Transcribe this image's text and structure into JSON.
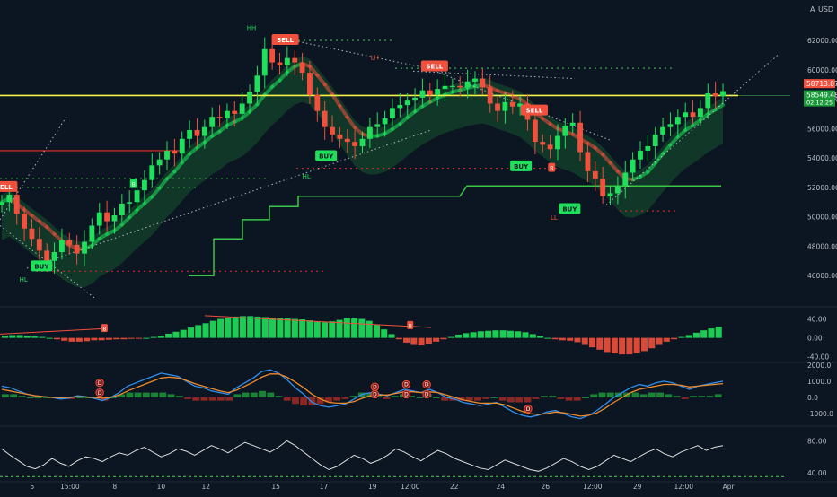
{
  "header": {
    "currency": "USD",
    "scale_mode": "A"
  },
  "colors": {
    "background": "#0c1622",
    "bull": "#1ee05a",
    "bull_dark": "#1b8f3a",
    "bear": "#f0503c",
    "bear_dark": "#9a2a22",
    "yellow": "#f5f34a",
    "axis_text": "#b7bdc6",
    "white": "#dcdcdc",
    "blue": "#2f8ff0",
    "orange": "#ef8a2a"
  },
  "chart_data": [
    {
      "type": "candlestick",
      "panel": "price",
      "y_axis_ticks": [
        "62000.00",
        "60000.00",
        "58000.00",
        "56000.00",
        "54000.00",
        "52000.00",
        "50000.00",
        "48000.00",
        "46000.00"
      ],
      "y_axis_tick_values": [
        62000,
        60000,
        58000,
        56000,
        54000,
        52000,
        50000,
        48000,
        46000
      ],
      "ylim": [
        44000,
        64500
      ],
      "x_axis_ticks": [
        "5",
        "15:00",
        "8",
        "10",
        "12",
        "15",
        "17",
        "19",
        "12:00",
        "22",
        "24",
        "26",
        "12:00",
        "29",
        "12:00",
        "Apr"
      ],
      "x_axis_tick_fractions": [
        0.041,
        0.089,
        0.146,
        0.205,
        0.262,
        0.351,
        0.412,
        0.474,
        0.522,
        0.578,
        0.637,
        0.694,
        0.754,
        0.811,
        0.87,
        0.927
      ],
      "price_levels": {
        "yellow_line": 58250,
        "last_price_label": "58713.07",
        "current_price_label": "58549.48",
        "countdown_label": "02:12:25"
      },
      "close_path": [
        51000,
        51500,
        50200,
        49200,
        48500,
        47700,
        47000,
        47600,
        48400,
        48100,
        47500,
        48300,
        49400,
        50300,
        49700,
        50100,
        50900,
        51000,
        51800,
        52500,
        53500,
        53900,
        54500,
        54300,
        55300,
        55900,
        55500,
        56100,
        56800,
        56700,
        57200,
        57000,
        57700,
        58500,
        59600,
        61400,
        60500,
        60300,
        60800,
        60500,
        59800,
        58300,
        57200,
        56100,
        55600,
        55300,
        55100,
        54800,
        55300,
        56100,
        56300,
        56700,
        57400,
        57600,
        57900,
        58100,
        58600,
        58300,
        58700,
        58900,
        58900,
        58800,
        59200,
        59400,
        58800,
        57700,
        57200,
        57800,
        57500,
        57700,
        56600,
        55100,
        54900,
        54600,
        55500,
        56200,
        56400,
        54400,
        53100,
        52600,
        51400,
        51600,
        52100,
        53000,
        53900,
        54500,
        54800,
        55600,
        56100,
        56300,
        56800,
        57100,
        56800,
        57400,
        58400,
        58200,
        58550
      ],
      "annotations": [
        {
          "text": "HH",
          "kind": "label_green",
          "x": 0.32,
          "y": 62700
        },
        {
          "text": "LH",
          "kind": "label_red",
          "x": 0.477,
          "y": 60700
        },
        {
          "text": "HL",
          "kind": "label_green",
          "x": 0.39,
          "y": 52600
        },
        {
          "text": "HL",
          "kind": "label_green",
          "x": 0.03,
          "y": 45600
        },
        {
          "text": "LL",
          "kind": "label_red",
          "x": 0.705,
          "y": 49800
        },
        {
          "text": "SELL",
          "kind": "sell",
          "x": 0.363,
          "y": 62000
        },
        {
          "text": "SELL",
          "kind": "sell",
          "x": 0.553,
          "y": 60200
        },
        {
          "text": "SELL",
          "kind": "sell",
          "x": 0.68,
          "y": 57200
        },
        {
          "text": "SELL",
          "kind": "sell",
          "x": 0.005,
          "y": 52000
        },
        {
          "text": "BUY",
          "kind": "buy",
          "x": 0.053,
          "y": 46600
        },
        {
          "text": "BUY",
          "kind": "buy",
          "x": 0.415,
          "y": 54100
        },
        {
          "text": "BUY",
          "kind": "buy",
          "x": 0.663,
          "y": 53400
        },
        {
          "text": "BUY",
          "kind": "buy",
          "x": 0.725,
          "y": 50500
        },
        {
          "text": "B",
          "kind": "marker_bear",
          "x": 0.702,
          "y": 53300
        },
        {
          "text": "B",
          "kind": "marker_bull",
          "x": 0.17,
          "y": 52200
        }
      ]
    },
    {
      "type": "bar",
      "panel": "momentum",
      "y_axis_ticks": [
        "40.00",
        "0.00",
        "-40.00"
      ],
      "y_axis_tick_values": [
        40,
        0,
        -40
      ],
      "ylim": [
        -50,
        60
      ],
      "values": [
        5,
        6,
        6,
        5,
        3,
        2,
        0,
        -3,
        -6,
        -8,
        -8,
        -7,
        -5,
        -5,
        -4,
        -3,
        -3,
        -2,
        -1,
        0,
        2,
        5,
        9,
        13,
        17,
        22,
        27,
        31,
        36,
        40,
        43,
        45,
        46,
        46,
        45,
        44,
        43,
        42,
        41,
        40,
        39,
        37,
        34,
        33,
        35,
        38,
        42,
        41,
        40,
        36,
        28,
        18,
        8,
        -3,
        -10,
        -15,
        -16,
        -13,
        -8,
        -3,
        2,
        7,
        10,
        12,
        14,
        15,
        16,
        16,
        15,
        14,
        12,
        8,
        4,
        0,
        -3,
        -5,
        -6,
        -9,
        -15,
        -20,
        -25,
        -30,
        -33,
        -35,
        -35,
        -32,
        -28,
        -22,
        -15,
        -8,
        -3,
        2,
        6,
        11,
        16,
        20,
        24
      ],
      "annotations": [
        {
          "text": "B",
          "x": 0.133,
          "y": 20
        },
        {
          "text": "B",
          "x": 0.522,
          "y": 26
        }
      ]
    },
    {
      "type": "line",
      "panel": "macd",
      "y_axis_ticks": [
        "2000.0",
        "1000.0",
        "0.0",
        "-1000.0"
      ],
      "y_axis_tick_values": [
        2000,
        1000,
        0,
        -1000
      ],
      "ylim": [
        -1600,
        2100
      ],
      "series": [
        {
          "color_key": "blue",
          "values": [
            700,
            600,
            400,
            200,
            100,
            50,
            0,
            -100,
            -50,
            100,
            50,
            -50,
            -200,
            0,
            300,
            700,
            900,
            1100,
            1300,
            1500,
            1400,
            1300,
            1000,
            700,
            600,
            400,
            300,
            200,
            600,
            900,
            1200,
            1600,
            1700,
            1500,
            1100,
            600,
            200,
            -300,
            -500,
            -600,
            -500,
            -400,
            -100,
            200,
            300,
            200,
            100,
            300,
            500,
            400,
            300,
            500,
            300,
            0,
            -100,
            -300,
            -400,
            -500,
            -400,
            -300,
            -600,
            -900,
            -1100,
            -1200,
            -1100,
            -900,
            -800,
            -1000,
            -1200,
            -1300,
            -1100,
            -800,
            -400,
            0,
            300,
            600,
            800,
            700,
            900,
            1000,
            900,
            700,
            500,
            700,
            800,
            900,
            1000
          ]
        },
        {
          "color_key": "orange",
          "values": [
            500,
            400,
            300,
            200,
            100,
            50,
            0,
            -20,
            0,
            50,
            30,
            0,
            -50,
            0,
            150,
            400,
            600,
            800,
            1000,
            1200,
            1250,
            1200,
            1050,
            850,
            700,
            550,
            400,
            300,
            450,
            700,
            950,
            1250,
            1450,
            1450,
            1250,
            950,
            600,
            200,
            -100,
            -300,
            -350,
            -350,
            -250,
            -50,
            100,
            150,
            150,
            250,
            350,
            350,
            300,
            350,
            300,
            150,
            0,
            -150,
            -250,
            -350,
            -350,
            -350,
            -450,
            -650,
            -850,
            -1000,
            -1050,
            -1000,
            -900,
            -950,
            -1050,
            -1150,
            -1100,
            -950,
            -650,
            -300,
            0,
            300,
            500,
            600,
            700,
            800,
            800,
            750,
            650,
            700,
            750,
            800,
            850
          ]
        }
      ],
      "histogram": [
        200,
        200,
        100,
        0,
        0,
        0,
        0,
        -100,
        -100,
        0,
        0,
        -100,
        -200,
        0,
        200,
        300,
        300,
        300,
        300,
        300,
        200,
        100,
        -100,
        -200,
        -200,
        -200,
        -200,
        -200,
        200,
        300,
        300,
        400,
        300,
        100,
        -200,
        -400,
        -500,
        -500,
        -400,
        -300,
        -200,
        -100,
        100,
        300,
        300,
        100,
        -100,
        100,
        200,
        100,
        0,
        200,
        0,
        -200,
        -200,
        -200,
        -200,
        -200,
        -100,
        0,
        -200,
        -300,
        -300,
        -300,
        -100,
        100,
        100,
        -100,
        -200,
        -200,
        0,
        200,
        300,
        300,
        300,
        300,
        300,
        200,
        300,
        300,
        200,
        100,
        -100,
        100,
        100,
        100,
        200
      ],
      "annotations": [
        {
          "text": "D",
          "x": 0.127,
          "y": 900
        },
        {
          "text": "D",
          "x": 0.127,
          "y": 300
        },
        {
          "text": "D",
          "x": 0.477,
          "y": 650
        },
        {
          "text": "D",
          "x": 0.477,
          "y": 200
        },
        {
          "text": "D",
          "x": 0.517,
          "y": 800
        },
        {
          "text": "D",
          "x": 0.517,
          "y": 200
        },
        {
          "text": "D",
          "x": 0.543,
          "y": 800
        },
        {
          "text": "D",
          "x": 0.543,
          "y": 200
        },
        {
          "text": "D",
          "x": 0.672,
          "y": -700
        }
      ]
    },
    {
      "type": "line",
      "panel": "rsi",
      "y_axis_ticks": [
        "80.00",
        "40.00"
      ],
      "y_axis_tick_values": [
        80,
        40
      ],
      "ylim": [
        30,
        95
      ],
      "series": [
        {
          "color_key": "white",
          "values": [
            70,
            62,
            55,
            48,
            45,
            50,
            58,
            52,
            48,
            55,
            60,
            58,
            54,
            60,
            65,
            62,
            68,
            72,
            66,
            60,
            64,
            70,
            67,
            62,
            68,
            74,
            70,
            65,
            72,
            78,
            74,
            70,
            66,
            72,
            80,
            74,
            66,
            58,
            50,
            44,
            48,
            55,
            62,
            58,
            52,
            56,
            62,
            70,
            66,
            60,
            55,
            62,
            68,
            64,
            58,
            54,
            50,
            46,
            44,
            50,
            56,
            52,
            48,
            44,
            42,
            46,
            52,
            58,
            54,
            48,
            44,
            48,
            55,
            62,
            58,
            54,
            60,
            66,
            70,
            64,
            60,
            66,
            70,
            74,
            68,
            72,
            74
          ]
        }
      ]
    }
  ]
}
